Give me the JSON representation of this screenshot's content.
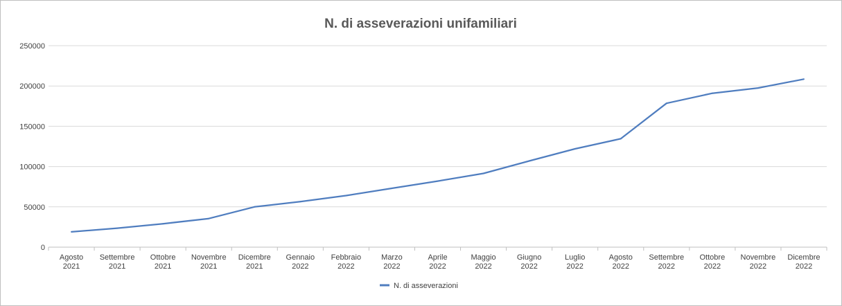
{
  "chart_data": {
    "type": "line",
    "title": "N. di asseverazioni unifamiliari",
    "xlabel": "",
    "ylabel": "",
    "ylim": [
      0,
      250000
    ],
    "yticks": [
      0,
      50000,
      100000,
      150000,
      200000,
      250000
    ],
    "ytick_labels": [
      "0",
      "50000",
      "100000",
      "150000",
      "200000",
      "250000"
    ],
    "grid": true,
    "legend_position": "bottom",
    "categories": [
      [
        "Agosto",
        "2021"
      ],
      [
        "Settembre",
        "2021"
      ],
      [
        "Ottobre",
        "2021"
      ],
      [
        "Novembre",
        "2021"
      ],
      [
        "Dicembre",
        "2021"
      ],
      [
        "Gennaio",
        "2022"
      ],
      [
        "Febbraio",
        "2022"
      ],
      [
        "Marzo",
        "2022"
      ],
      [
        "Aprile",
        "2022"
      ],
      [
        "Maggio",
        "2022"
      ],
      [
        "Giugno",
        "2022"
      ],
      [
        "Luglio",
        "2022"
      ],
      [
        "Agosto",
        "2022"
      ],
      [
        "Settembre",
        "2022"
      ],
      [
        "Ottobre",
        "2022"
      ],
      [
        "Novembre",
        "2022"
      ],
      [
        "Dicembre",
        "2022"
      ]
    ],
    "series": [
      {
        "name": "N. di asseverazioni",
        "color": "#4f7dbf",
        "values": [
          19000,
          23500,
          29000,
          35500,
          50000,
          56500,
          64000,
          73000,
          82000,
          91500,
          107000,
          122000,
          134500,
          178500,
          191000,
          197500,
          208500
        ]
      }
    ]
  }
}
